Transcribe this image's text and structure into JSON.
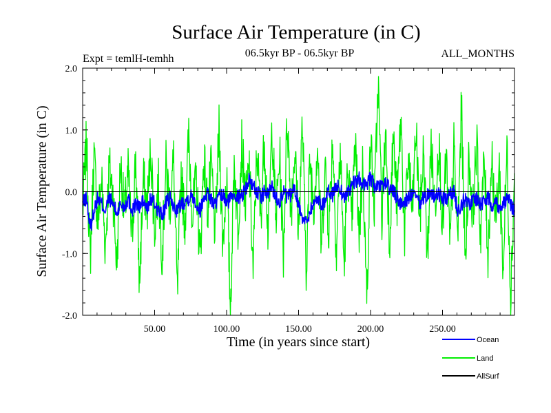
{
  "chart_data": {
    "type": "line",
    "title": "Surface Air Temperature (in C)",
    "subtitle_left": "Expt = temlH-temhh",
    "subtitle_center": "06.5kyr BP - 06.5kyr BP",
    "subtitle_right": "ALL_MONTHS",
    "xlabel": "Time (in years since start)",
    "ylabel": "Surface Air Temperature (in C)",
    "xlim": [
      0,
      300
    ],
    "ylim": [
      -2.0,
      2.0
    ],
    "xticks": [
      50,
      100,
      150,
      200,
      250
    ],
    "xtick_labels": [
      "50.00",
      "100.00",
      "150.00",
      "200.00",
      "250.00"
    ],
    "yticks": [
      -2.0,
      -1.0,
      0.0,
      1.0,
      2.0
    ],
    "ytick_labels": [
      "-2.0",
      "-1.0",
      "0.0",
      "1.0",
      "2.0"
    ],
    "zero_line": 0.0,
    "legend_position": "bottom-right",
    "series": [
      {
        "name": "Land",
        "color": "#00ee00",
        "values": [
          -0.3,
          0.8,
          -1.1,
          0.6,
          -0.5,
          0.2,
          -0.9,
          0.4,
          0.0,
          -1.2,
          0.5,
          -0.4,
          0.3,
          -0.8,
          0.6,
          -1.5,
          0.2,
          -0.3,
          0.7,
          -0.6,
          0.1,
          -1.0,
          0.4,
          -0.2,
          0.5,
          -1.7,
          0.3,
          -0.5,
          0.9,
          -0.4,
          0.2,
          -1.1,
          0.6,
          -0.3,
          0.4,
          -0.7,
          1.0,
          -0.9,
          0.3,
          -1.9,
          0.5,
          -0.6,
          0.8,
          -0.2,
          0.4,
          -1.3,
          0.7,
          -0.4,
          0.9,
          -0.8,
          1.1,
          -0.5,
          0.6,
          -1.0,
          1.25,
          -0.3,
          0.7,
          -0.6,
          1.1,
          -1.2,
          0.5,
          -0.2,
          0.8,
          -0.9,
          0.4,
          -0.6,
          0.9,
          -1.0,
          0.7,
          -1.2,
          0.4,
          -0.5,
          0.8,
          -0.7,
          0.5,
          -1.8,
          0.9,
          -0.3,
          1.78,
          -0.4,
          1.0,
          -0.8,
          0.9,
          -0.2,
          1.2,
          -0.7,
          0.6,
          -0.4,
          1.0,
          -0.5,
          0.7,
          -1.1,
          0.8,
          -0.3,
          0.9,
          -0.6,
          0.5,
          -0.9,
          0.7,
          -0.8,
          1.38,
          -1.2,
          0.6,
          -0.4,
          0.8,
          -0.7,
          0.5,
          -1.0,
          0.6,
          -0.5,
          0.4,
          -1.3,
          0.7,
          -1.7,
          0.3
        ]
      },
      {
        "name": "Ocean",
        "color": "#0000ff",
        "values": [
          -0.2,
          -0.1,
          -0.6,
          -0.3,
          -0.1,
          -0.2,
          -0.3,
          -0.1,
          -0.2,
          -0.35,
          -0.2,
          -0.25,
          -0.1,
          -0.3,
          -0.2,
          -0.25,
          -0.15,
          -0.3,
          -0.1,
          -0.2,
          -0.3,
          -0.4,
          -0.2,
          -0.1,
          -0.25,
          -0.3,
          -0.2,
          -0.15,
          -0.1,
          -0.05,
          -0.2,
          -0.3,
          -0.1,
          0.0,
          -0.15,
          -0.2,
          -0.1,
          -0.05,
          -0.2,
          -0.1,
          0.0,
          -0.1,
          -0.05,
          0.05,
          0.2,
          0.1,
          0.0,
          -0.1,
          0.0,
          -0.05,
          0.1,
          -0.1,
          -0.15,
          0.0,
          -0.1,
          -0.05,
          0.05,
          -0.2,
          -0.4,
          -0.5,
          -0.3,
          -0.2,
          -0.1,
          -0.2,
          -0.15,
          0.0,
          -0.05,
          0.1,
          0.05,
          -0.1,
          0.0,
          0.1,
          0.15,
          0.2,
          0.1,
          0.15,
          0.2,
          0.1,
          0.05,
          0.1,
          0.15,
          0.05,
          0.0,
          -0.1,
          -0.2,
          -0.15,
          -0.1,
          -0.05,
          -0.1,
          -0.2,
          -0.1,
          -0.05,
          0.0,
          -0.1,
          -0.05,
          -0.1,
          -0.15,
          -0.05,
          0.0,
          -0.3,
          -0.2,
          -0.1,
          -0.2,
          -0.15,
          -0.1,
          -0.2,
          -0.15,
          -0.1,
          -0.2,
          -0.15,
          -0.25,
          -0.2,
          -0.1,
          -0.2,
          -0.3
        ]
      },
      {
        "name": "AllSurf",
        "color": "#000000",
        "values": []
      }
    ]
  }
}
